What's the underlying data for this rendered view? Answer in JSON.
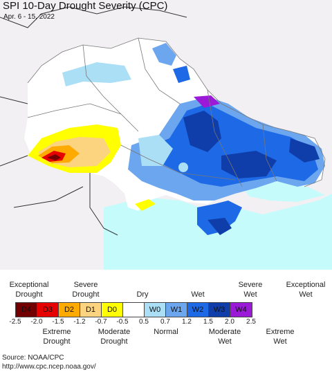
{
  "title": "SPI 10-Day Drought Severity (CPC)",
  "date": "Apr. 6 - 15, 2022",
  "legend": {
    "top_labels": [
      {
        "text": "Exceptional\nDrought"
      },
      {
        "text": "Severe\nDrought"
      },
      {
        "text": "Dry"
      },
      {
        "text": "Wet"
      },
      {
        "text": "Severe\nWet"
      },
      {
        "text": "Exceptional\nWet"
      }
    ],
    "bottom_labels": [
      {
        "text": "Extreme\nDrought"
      },
      {
        "text": "Moderate\nDrought"
      },
      {
        "text": "Normal"
      },
      {
        "text": "Moderate\nWet"
      },
      {
        "text": "Extreme\nWet"
      }
    ],
    "categories": [
      {
        "code": "D4",
        "color": "#730000"
      },
      {
        "code": "D3",
        "color": "#e60000"
      },
      {
        "code": "D2",
        "color": "#ffaa00"
      },
      {
        "code": "D1",
        "color": "#fcd37f"
      },
      {
        "code": "D0",
        "color": "#ffff00"
      },
      {
        "code": "",
        "color": "#ffffff"
      },
      {
        "code": "W0",
        "color": "#aadff5"
      },
      {
        "code": "W1",
        "color": "#6ca6ef"
      },
      {
        "code": "W2",
        "color": "#1e69e6"
      },
      {
        "code": "W3",
        "color": "#0f3eaa"
      },
      {
        "code": "W4",
        "color": "#9b1ad7"
      }
    ],
    "ticks": [
      "-2.5",
      "-2.0",
      "-1.5",
      "-1.2",
      "-0.7",
      "-0.5",
      "0.5",
      "0.7",
      "1.2",
      "1.5",
      "2.0",
      "2.5"
    ]
  },
  "source": {
    "line1": "Source: NOAA/CPC",
    "line2": "http://www.cpc.ncep.noaa.gov/"
  }
}
